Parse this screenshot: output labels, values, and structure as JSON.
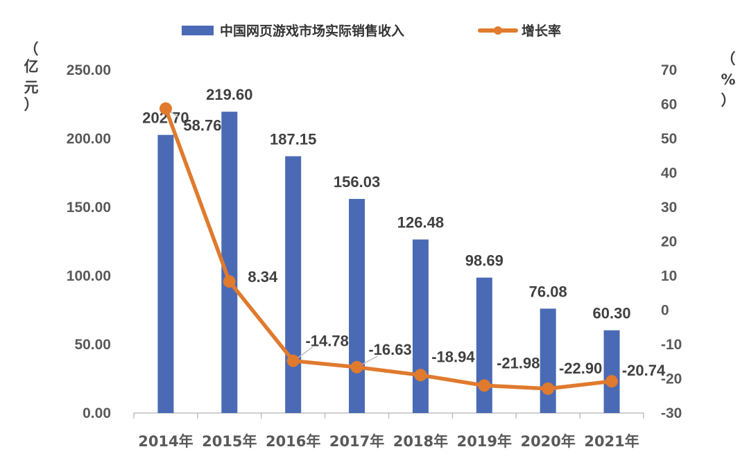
{
  "chart_data": {
    "type": "bar",
    "categories": [
      "2014年",
      "2015年",
      "2016年",
      "2017年",
      "2018年",
      "2019年",
      "2020年",
      "2021年"
    ],
    "series": [
      {
        "name": "中国网页游戏市场实际销售收入",
        "type": "bar",
        "axis": "left",
        "color": "#4A6AB5",
        "values": [
          202.7,
          219.6,
          187.15,
          156.03,
          126.48,
          98.69,
          76.08,
          60.3
        ],
        "labels": [
          "202.70",
          "219.60",
          "187.15",
          "156.03",
          "126.48",
          "98.69",
          "76.08",
          "60.30"
        ]
      },
      {
        "name": "增长率",
        "type": "line",
        "axis": "right",
        "color": "#E07A2E",
        "values": [
          58.76,
          8.34,
          -14.78,
          -16.63,
          -18.94,
          -21.98,
          -22.9,
          -20.74
        ],
        "labels": [
          "58.76",
          "8.34",
          "-14.78",
          "-16.63",
          "-18.94",
          "-21.98",
          "-22.90",
          "-20.74"
        ]
      }
    ],
    "y_left": {
      "ticks": [
        "0.00",
        "50.00",
        "100.00",
        "150.00",
        "200.00",
        "250.00"
      ],
      "ylim": [
        0,
        250
      ],
      "unit": [
        "（",
        "亿",
        "元",
        "）"
      ]
    },
    "y_right": {
      "ticks": [
        "-30",
        "-20",
        "-10",
        "0",
        "10",
        "20",
        "30",
        "40",
        "50",
        "60",
        "70"
      ],
      "ylim": [
        -30,
        70
      ],
      "unit": [
        "（",
        "%",
        "）"
      ]
    },
    "grid": false,
    "legend_position": "top"
  }
}
